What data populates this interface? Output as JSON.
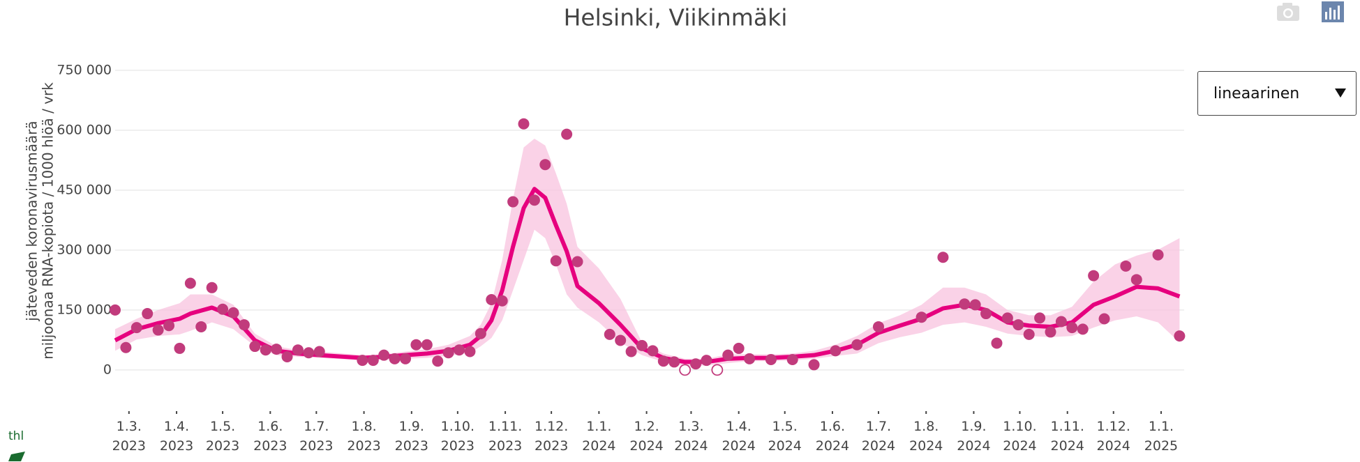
{
  "chart_data": {
    "type": "scatter",
    "title": "Helsinki, Viikinmäki",
    "ylabel": [
      "jäteveden koronavirusmäärä",
      "miljoonaa RNA-kopiota / 1000 hlöä / vrk"
    ],
    "scale_control": "lineaarinen",
    "logo": "thl",
    "xlim": [
      "2023-02-20",
      "2025-01-16"
    ],
    "xticks": [
      {
        "value": "2023-03-01",
        "label": "1.3.\n2023"
      },
      {
        "value": "2023-04-01",
        "label": "1.4.\n2023"
      },
      {
        "value": "2023-05-01",
        "label": "1.5.\n2023"
      },
      {
        "value": "2023-06-01",
        "label": "1.6.\n2023"
      },
      {
        "value": "2023-07-01",
        "label": "1.7.\n2023"
      },
      {
        "value": "2023-08-01",
        "label": "1.8.\n2023"
      },
      {
        "value": "2023-09-01",
        "label": "1.9.\n2023"
      },
      {
        "value": "2023-10-01",
        "label": "1.10.\n2023"
      },
      {
        "value": "2023-11-01",
        "label": "1.11.\n2023"
      },
      {
        "value": "2023-12-01",
        "label": "1.12.\n2023"
      },
      {
        "value": "2024-01-01",
        "label": "1.1.\n2024"
      },
      {
        "value": "2024-02-01",
        "label": "1.2.\n2024"
      },
      {
        "value": "2024-03-01",
        "label": "1.3.\n2024"
      },
      {
        "value": "2024-04-01",
        "label": "1.4.\n2024"
      },
      {
        "value": "2024-05-01",
        "label": "1.5.\n2024"
      },
      {
        "value": "2024-06-01",
        "label": "1.6.\n2024"
      },
      {
        "value": "2024-07-01",
        "label": "1.7.\n2024"
      },
      {
        "value": "2024-08-01",
        "label": "1.8.\n2024"
      },
      {
        "value": "2024-09-01",
        "label": "1.9.\n2024"
      },
      {
        "value": "2024-10-01",
        "label": "1.10.\n2024"
      },
      {
        "value": "2024-11-01",
        "label": "1.11.\n2024"
      },
      {
        "value": "2024-12-01",
        "label": "1.12.\n2024"
      },
      {
        "value": "2025-01-01",
        "label": "1.1.\n2025"
      }
    ],
    "ylim": [
      -70000,
      790000
    ],
    "yticks": [
      0,
      {
        "value": 150000,
        "label": "150 000"
      },
      {
        "value": 300000,
        "label": "300 000"
      },
      {
        "value": 450000,
        "label": "450 000"
      },
      {
        "value": 600000,
        "label": "600 000"
      },
      {
        "value": 750000,
        "label": "750 000"
      }
    ],
    "grid": true,
    "points": {
      "color": "#c13b7c",
      "x": [
        "2023-02-20",
        "2023-02-27",
        "2023-03-06",
        "2023-03-13",
        "2023-03-20",
        "2023-03-27",
        "2023-04-03",
        "2023-04-10",
        "2023-04-17",
        "2023-04-24",
        "2023-05-01",
        "2023-05-08",
        "2023-05-15",
        "2023-05-22",
        "2023-05-29",
        "2023-06-05",
        "2023-06-12",
        "2023-06-19",
        "2023-06-26",
        "2023-07-03",
        "2023-07-31",
        "2023-08-07",
        "2023-08-14",
        "2023-08-21",
        "2023-08-28",
        "2023-09-04",
        "2023-09-11",
        "2023-09-18",
        "2023-09-25",
        "2023-10-02",
        "2023-10-09",
        "2023-10-16",
        "2023-10-23",
        "2023-10-30",
        "2023-11-06",
        "2023-11-13",
        "2023-11-20",
        "2023-11-27",
        "2023-12-04",
        "2023-12-11",
        "2023-12-18",
        "2024-01-08",
        "2024-01-15",
        "2024-01-22",
        "2024-01-29",
        "2024-02-05",
        "2024-02-12",
        "2024-02-19",
        "2024-03-04",
        "2024-03-11",
        "2024-03-25",
        "2024-04-01",
        "2024-04-08",
        "2024-04-22",
        "2024-05-06",
        "2024-05-20",
        "2024-06-03",
        "2024-06-17",
        "2024-07-01",
        "2024-07-29",
        "2024-08-12",
        "2024-08-26",
        "2024-09-02",
        "2024-09-09",
        "2024-09-16",
        "2024-09-23",
        "2024-09-30",
        "2024-10-07",
        "2024-10-14",
        "2024-10-21",
        "2024-10-28",
        "2024-11-04",
        "2024-11-11",
        "2024-11-18",
        "2024-11-25",
        "2024-12-09",
        "2024-12-16",
        "2024-12-30",
        "2025-01-13"
      ],
      "values": [
        150000,
        56000,
        106000,
        141000,
        100000,
        111000,
        54000,
        217000,
        108000,
        206000,
        152000,
        143000,
        113000,
        59000,
        50000,
        52000,
        33000,
        50000,
        43000,
        46000,
        24000,
        24000,
        37000,
        28000,
        28000,
        63000,
        63000,
        22000,
        43000,
        50000,
        46000,
        91000,
        176000,
        173000,
        421000,
        616000,
        425000,
        514000,
        273000,
        590000,
        271000,
        89000,
        74000,
        46000,
        61000,
        48000,
        22000,
        20000,
        15000,
        24000,
        37000,
        54000,
        28000,
        26000,
        26000,
        13000,
        48000,
        63000,
        108000,
        132000,
        282000,
        165000,
        163000,
        141000,
        67000,
        130000,
        113000,
        89000,
        130000,
        95000,
        121000,
        106000,
        102000,
        236000,
        128000,
        260000,
        226000,
        288000,
        85000
      ]
    },
    "points_open": {
      "color": "#c13b7c",
      "x": [
        "2024-02-26",
        "2024-03-18"
      ],
      "values": [
        0,
        0
      ]
    },
    "trend": {
      "color": "#e6007e",
      "band_color": "#f8c3df",
      "x": [
        "2023-02-20",
        "2023-03-06",
        "2023-03-20",
        "2023-04-03",
        "2023-04-10",
        "2023-04-24",
        "2023-05-08",
        "2023-05-22",
        "2023-06-05",
        "2023-06-19",
        "2023-07-03",
        "2023-07-31",
        "2023-08-14",
        "2023-08-28",
        "2023-09-11",
        "2023-09-25",
        "2023-10-09",
        "2023-10-16",
        "2023-10-23",
        "2023-10-30",
        "2023-11-06",
        "2023-11-13",
        "2023-11-20",
        "2023-11-27",
        "2023-12-04",
        "2023-12-11",
        "2023-12-18",
        "2024-01-01",
        "2024-01-15",
        "2024-01-29",
        "2024-02-12",
        "2024-02-26",
        "2024-03-11",
        "2024-03-25",
        "2024-04-08",
        "2024-04-22",
        "2024-05-06",
        "2024-05-20",
        "2024-06-03",
        "2024-06-17",
        "2024-07-01",
        "2024-07-15",
        "2024-07-29",
        "2024-08-12",
        "2024-08-26",
        "2024-09-09",
        "2024-09-23",
        "2024-10-07",
        "2024-10-21",
        "2024-11-04",
        "2024-11-18",
        "2024-12-02",
        "2024-12-16",
        "2024-12-30",
        "2025-01-13"
      ],
      "values": [
        74000,
        102000,
        117000,
        128000,
        141000,
        156000,
        134000,
        74000,
        48000,
        41000,
        37000,
        30000,
        33000,
        37000,
        41000,
        48000,
        63000,
        85000,
        124000,
        199000,
        308000,
        405000,
        453000,
        431000,
        362000,
        297000,
        210000,
        167000,
        113000,
        54000,
        30000,
        20000,
        20000,
        28000,
        30000,
        30000,
        33000,
        37000,
        48000,
        63000,
        93000,
        111000,
        128000,
        154000,
        163000,
        150000,
        119000,
        111000,
        108000,
        119000,
        163000,
        184000,
        208000,
        204000,
        184000
      ],
      "upper": [
        102000,
        128000,
        150000,
        167000,
        189000,
        189000,
        163000,
        91000,
        59000,
        50000,
        46000,
        37000,
        39000,
        46000,
        52000,
        63000,
        85000,
        113000,
        167000,
        275000,
        427000,
        557000,
        579000,
        562000,
        492000,
        416000,
        308000,
        254000,
        178000,
        69000,
        41000,
        28000,
        28000,
        39000,
        39000,
        39000,
        41000,
        48000,
        63000,
        85000,
        117000,
        137000,
        163000,
        206000,
        206000,
        189000,
        150000,
        137000,
        137000,
        158000,
        221000,
        264000,
        286000,
        301000,
        330000
      ],
      "lower": [
        48000,
        76000,
        85000,
        89000,
        98000,
        119000,
        102000,
        59000,
        37000,
        33000,
        30000,
        24000,
        26000,
        28000,
        30000,
        35000,
        43000,
        59000,
        80000,
        124000,
        199000,
        275000,
        351000,
        330000,
        264000,
        189000,
        156000,
        119000,
        69000,
        37000,
        20000,
        11000,
        11000,
        17000,
        22000,
        22000,
        24000,
        28000,
        35000,
        41000,
        67000,
        82000,
        93000,
        113000,
        119000,
        108000,
        91000,
        85000,
        82000,
        85000,
        106000,
        124000,
        134000,
        119000,
        69000
      ]
    }
  }
}
